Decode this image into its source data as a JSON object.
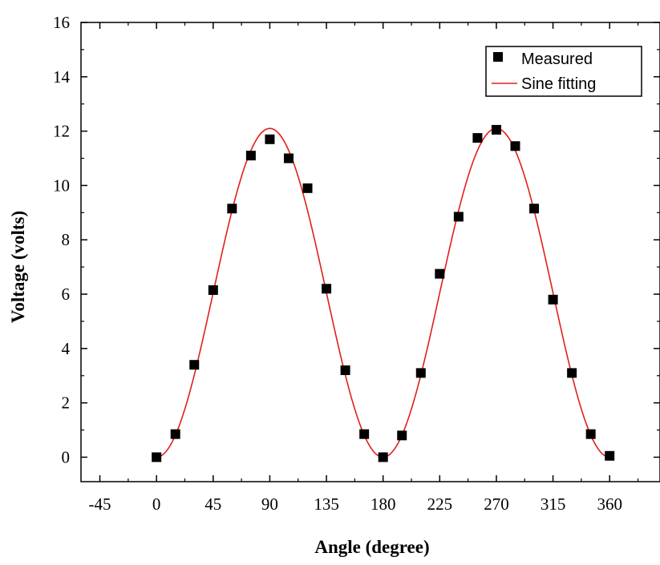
{
  "chart_data": {
    "type": "scatter",
    "xlabel": "Angle (degree)",
    "ylabel": "Voltage (volts)",
    "xlim": [
      -60,
      400
    ],
    "ylim": [
      -0.9,
      16
    ],
    "xticks": [
      -45,
      0,
      45,
      90,
      135,
      180,
      225,
      270,
      315,
      360
    ],
    "yticks": [
      0,
      2,
      4,
      6,
      8,
      10,
      12,
      14,
      16
    ],
    "xtick_labels": [
      "-45",
      "0",
      "45",
      "90",
      "135",
      "180",
      "225",
      "270",
      "315",
      "360"
    ],
    "ytick_labels": [
      "0",
      "2",
      "4",
      "6",
      "8",
      "10",
      "12",
      "14",
      "16"
    ],
    "grid": false,
    "legend_position": "top-right",
    "colors": {
      "measured": "#000000",
      "fit": "#e0201b"
    },
    "series": [
      {
        "name": "Measured",
        "kind": "scatter",
        "marker": "square",
        "x": [
          0,
          15,
          30,
          45,
          60,
          75,
          90,
          105,
          120,
          135,
          150,
          165,
          180,
          195,
          210,
          225,
          240,
          255,
          270,
          285,
          300,
          315,
          330,
          345,
          360
        ],
        "y": [
          0.0,
          0.85,
          3.4,
          6.15,
          9.15,
          11.1,
          11.7,
          11.0,
          9.9,
          6.2,
          3.2,
          0.85,
          0.0,
          0.8,
          3.1,
          6.75,
          8.85,
          11.75,
          12.05,
          11.45,
          9.15,
          5.8,
          3.1,
          0.85,
          0.05
        ]
      },
      {
        "name": "Sine fitting",
        "kind": "line",
        "amplitude": 12.1,
        "offset": 0.0,
        "function": "amplitude * sin^2(angle)"
      }
    ]
  }
}
